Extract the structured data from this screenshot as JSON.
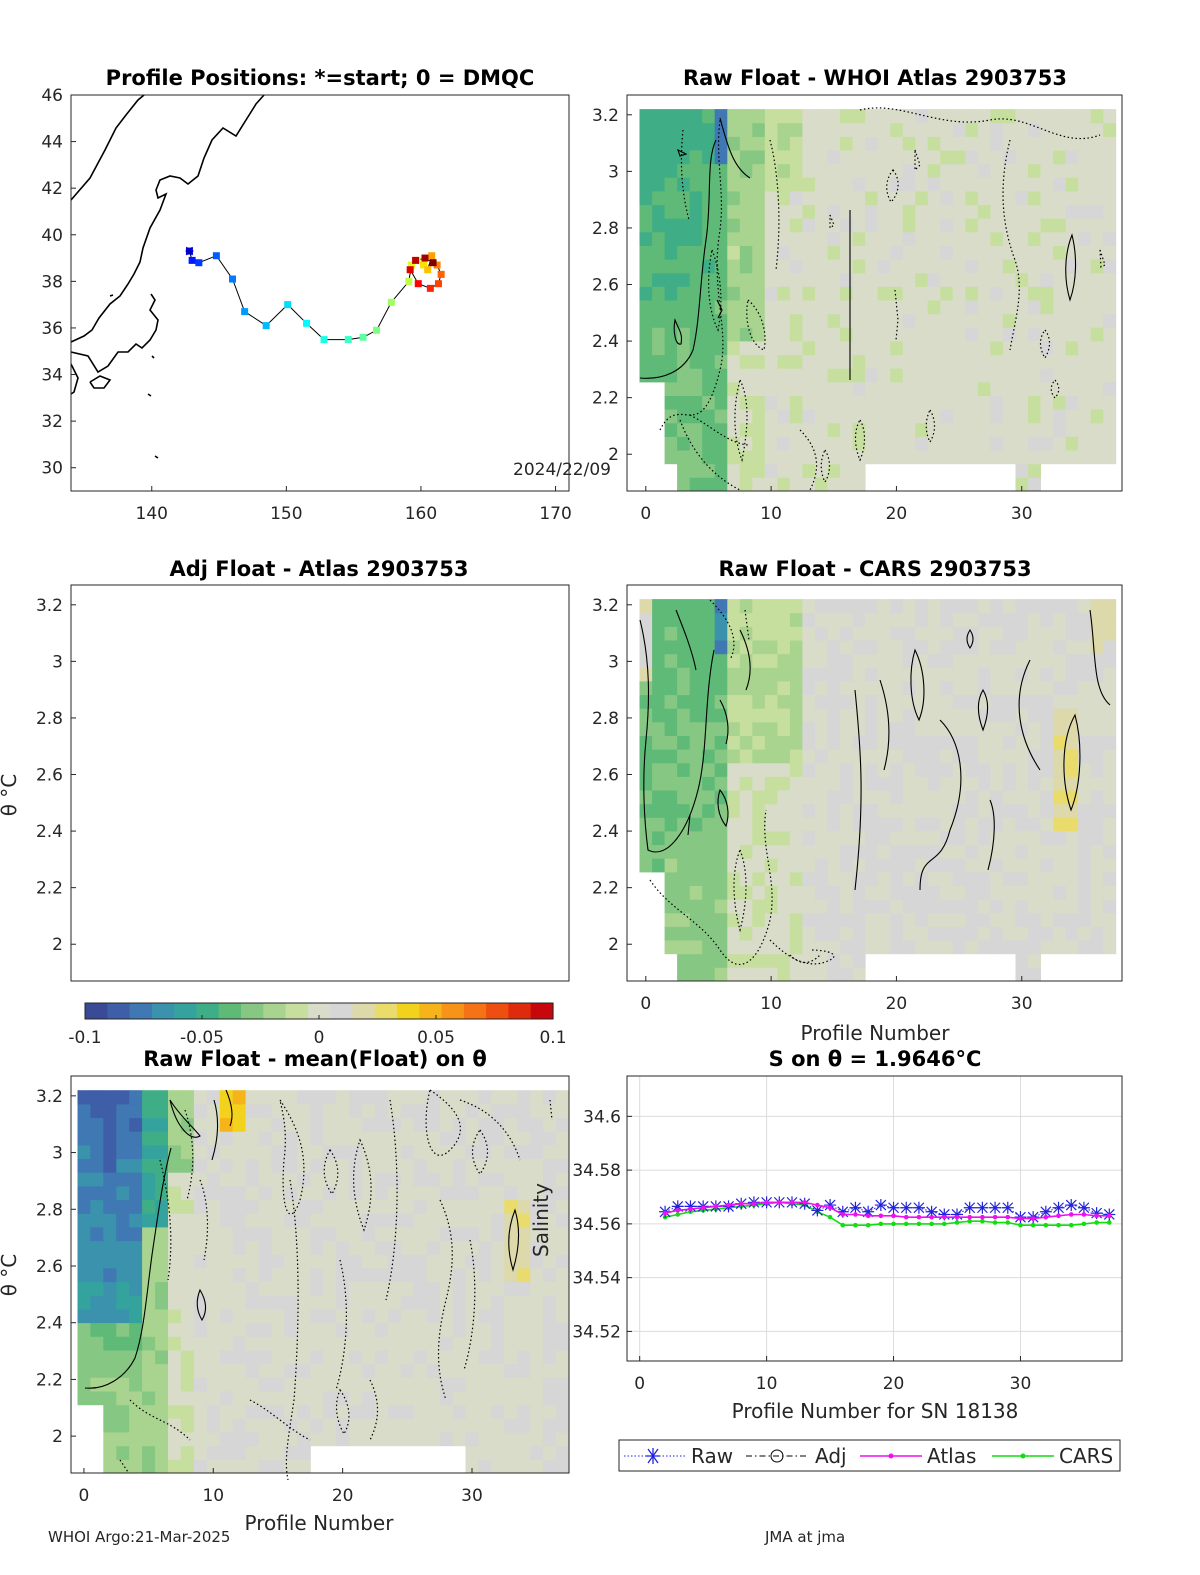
{
  "footer": {
    "left": "WHOI Argo:21-Mar-2025",
    "right": "JMA at jma"
  },
  "colorbar": {
    "ticks": [
      "-0.1",
      "-0.05",
      "0",
      "0.05",
      "0.1"
    ],
    "range": [
      -0.1,
      0.1
    ],
    "colors": [
      "#3b4a96",
      "#3e5fa8",
      "#3f78b2",
      "#3a92ad",
      "#34a39e",
      "#3fae86",
      "#5fba78",
      "#86c783",
      "#a9d48f",
      "#c6df9f",
      "#d8dcc9",
      "#d6d6d6",
      "#ddd9ab",
      "#e9dc6c",
      "#f3d21e",
      "#f6b41b",
      "#f79318",
      "#f57314",
      "#ee4f10",
      "#df2a0c",
      "#c8070c"
    ]
  },
  "chart_data": [
    {
      "id": "positions",
      "type": "scatter",
      "title": "Profile Positions: *=start; 0 = DMQC",
      "xlim": [
        134,
        171
      ],
      "ylim": [
        29,
        46
      ],
      "xticks": [
        "140",
        "150",
        "160",
        "170"
      ],
      "yticks": [
        "30",
        "32",
        "34",
        "36",
        "38",
        "40",
        "42",
        "44",
        "46"
      ],
      "annotation": "2024/22/09",
      "track": [
        [
          142.8,
          39.3
        ],
        [
          143.0,
          38.9
        ],
        [
          143.5,
          38.8
        ],
        [
          144.8,
          39.1
        ],
        [
          146.0,
          38.1
        ],
        [
          146.9,
          36.7
        ],
        [
          148.5,
          36.1
        ],
        [
          150.1,
          37.0
        ],
        [
          151.5,
          36.2
        ],
        [
          152.8,
          35.5
        ],
        [
          154.6,
          35.5
        ],
        [
          155.7,
          35.6
        ],
        [
          156.7,
          35.9
        ],
        [
          157.8,
          37.1
        ],
        [
          159.1,
          38.0
        ],
        [
          159.3,
          38.7
        ],
        [
          159.7,
          38.9
        ],
        [
          160.2,
          38.7
        ],
        [
          160.5,
          38.5
        ],
        [
          160.8,
          39.1
        ],
        [
          161.2,
          38.7
        ],
        [
          161.5,
          38.3
        ],
        [
          161.3,
          37.9
        ],
        [
          160.7,
          37.7
        ],
        [
          159.8,
          37.9
        ],
        [
          159.2,
          38.5
        ],
        [
          159.6,
          38.9
        ],
        [
          160.3,
          39.0
        ],
        [
          160.9,
          38.8
        ]
      ]
    },
    {
      "id": "raw-atlas",
      "type": "heatmap",
      "title": "Raw Float - WHOI Atlas  2903753",
      "xlim": [
        -1.5,
        38
      ],
      "ylim": [
        1.87,
        3.27
      ],
      "xticks": [
        "0",
        "10",
        "20",
        "30"
      ],
      "yticks": [
        "2",
        "2.2",
        "2.4",
        "2.6",
        "2.8",
        "3",
        "3.2"
      ],
      "xlabel": "",
      "ylabel": ""
    },
    {
      "id": "adj-atlas",
      "type": "heatmap",
      "title": "Adj Float - Atlas  2903753",
      "xlim": [
        -1.5,
        38
      ],
      "ylim": [
        1.87,
        3.27
      ],
      "xticks": [],
      "yticks": [
        "2",
        "2.2",
        "2.4",
        "2.6",
        "2.8",
        "3",
        "3.2"
      ],
      "ylabel": "θ °C"
    },
    {
      "id": "raw-cars",
      "type": "heatmap",
      "title": "Raw Float - CARS  2903753",
      "xlim": [
        -1.5,
        38
      ],
      "ylim": [
        1.87,
        3.27
      ],
      "xticks": [
        "0",
        "10",
        "20",
        "30"
      ],
      "yticks": [
        "2",
        "2.2",
        "2.4",
        "2.6",
        "2.8",
        "3",
        "3.2"
      ],
      "xlabel": "Profile Number"
    },
    {
      "id": "raw-mean",
      "type": "heatmap",
      "title": "Raw Float - mean(Float) on θ",
      "xlim": [
        -1,
        37.5
      ],
      "ylim": [
        1.87,
        3.27
      ],
      "xticks": [
        "0",
        "10",
        "20",
        "30"
      ],
      "yticks": [
        "2",
        "2.2",
        "2.4",
        "2.6",
        "2.8",
        "3",
        "3.2"
      ],
      "xlabel": "Profile Number",
      "ylabel": "θ °C"
    },
    {
      "id": "salinity",
      "type": "line",
      "title": "S on θ = 1.9646°C",
      "xlim": [
        -1,
        38
      ],
      "ylim": [
        34.509,
        34.615
      ],
      "xticks": [
        "0",
        "10",
        "20",
        "30"
      ],
      "yticks": [
        "34.52",
        "34.54",
        "34.56",
        "34.58",
        "34.6"
      ],
      "xlabel": "Profile Number for SN 18138",
      "ylabel": "Salinity",
      "grid": true,
      "legend": [
        "Raw",
        "Adj",
        "Atlas",
        "CARS"
      ],
      "x": [
        2,
        3,
        4,
        5,
        6,
        7,
        8,
        9,
        10,
        11,
        12,
        13,
        14,
        15,
        16,
        17,
        18,
        19,
        20,
        21,
        22,
        23,
        24,
        25,
        26,
        27,
        28,
        29,
        30,
        31,
        32,
        33,
        34,
        35,
        36,
        37
      ],
      "series": [
        {
          "name": "Raw",
          "color": "#2222dd",
          "values": [
            34.5645,
            34.5665,
            34.5665,
            34.5665,
            34.5665,
            34.5665,
            34.5675,
            34.568,
            34.568,
            34.568,
            34.568,
            34.5675,
            34.565,
            34.567,
            34.5645,
            34.566,
            34.5645,
            34.567,
            34.566,
            34.566,
            34.566,
            34.5645,
            34.5635,
            34.5635,
            34.566,
            34.566,
            34.566,
            34.566,
            34.5625,
            34.5625,
            34.5645,
            34.566,
            34.567,
            34.566,
            34.564,
            34.5635
          ]
        },
        {
          "name": "Atlas",
          "color": "#ee11ee",
          "values": [
            34.564,
            34.565,
            34.5655,
            34.566,
            34.5665,
            34.567,
            34.5675,
            34.5675,
            34.568,
            34.568,
            34.568,
            34.568,
            34.567,
            34.566,
            34.5635,
            34.5635,
            34.563,
            34.563,
            34.563,
            34.5625,
            34.5625,
            34.5625,
            34.5625,
            34.5625,
            34.5625,
            34.5625,
            34.5625,
            34.5625,
            34.562,
            34.562,
            34.5625,
            34.563,
            34.5635,
            34.5635,
            34.563,
            34.563
          ]
        },
        {
          "name": "CARS",
          "color": "#11dd11",
          "values": [
            34.5625,
            34.5635,
            34.5645,
            34.565,
            34.5655,
            34.566,
            34.5665,
            34.567,
            34.5675,
            34.568,
            34.5675,
            34.567,
            34.5645,
            34.5625,
            34.5595,
            34.5595,
            34.5595,
            34.56,
            34.56,
            34.56,
            34.56,
            34.56,
            34.56,
            34.5605,
            34.561,
            34.561,
            34.5605,
            34.5605,
            34.5595,
            34.5595,
            34.5595,
            34.5595,
            34.5595,
            34.56,
            34.5605,
            34.5605
          ]
        }
      ]
    }
  ]
}
